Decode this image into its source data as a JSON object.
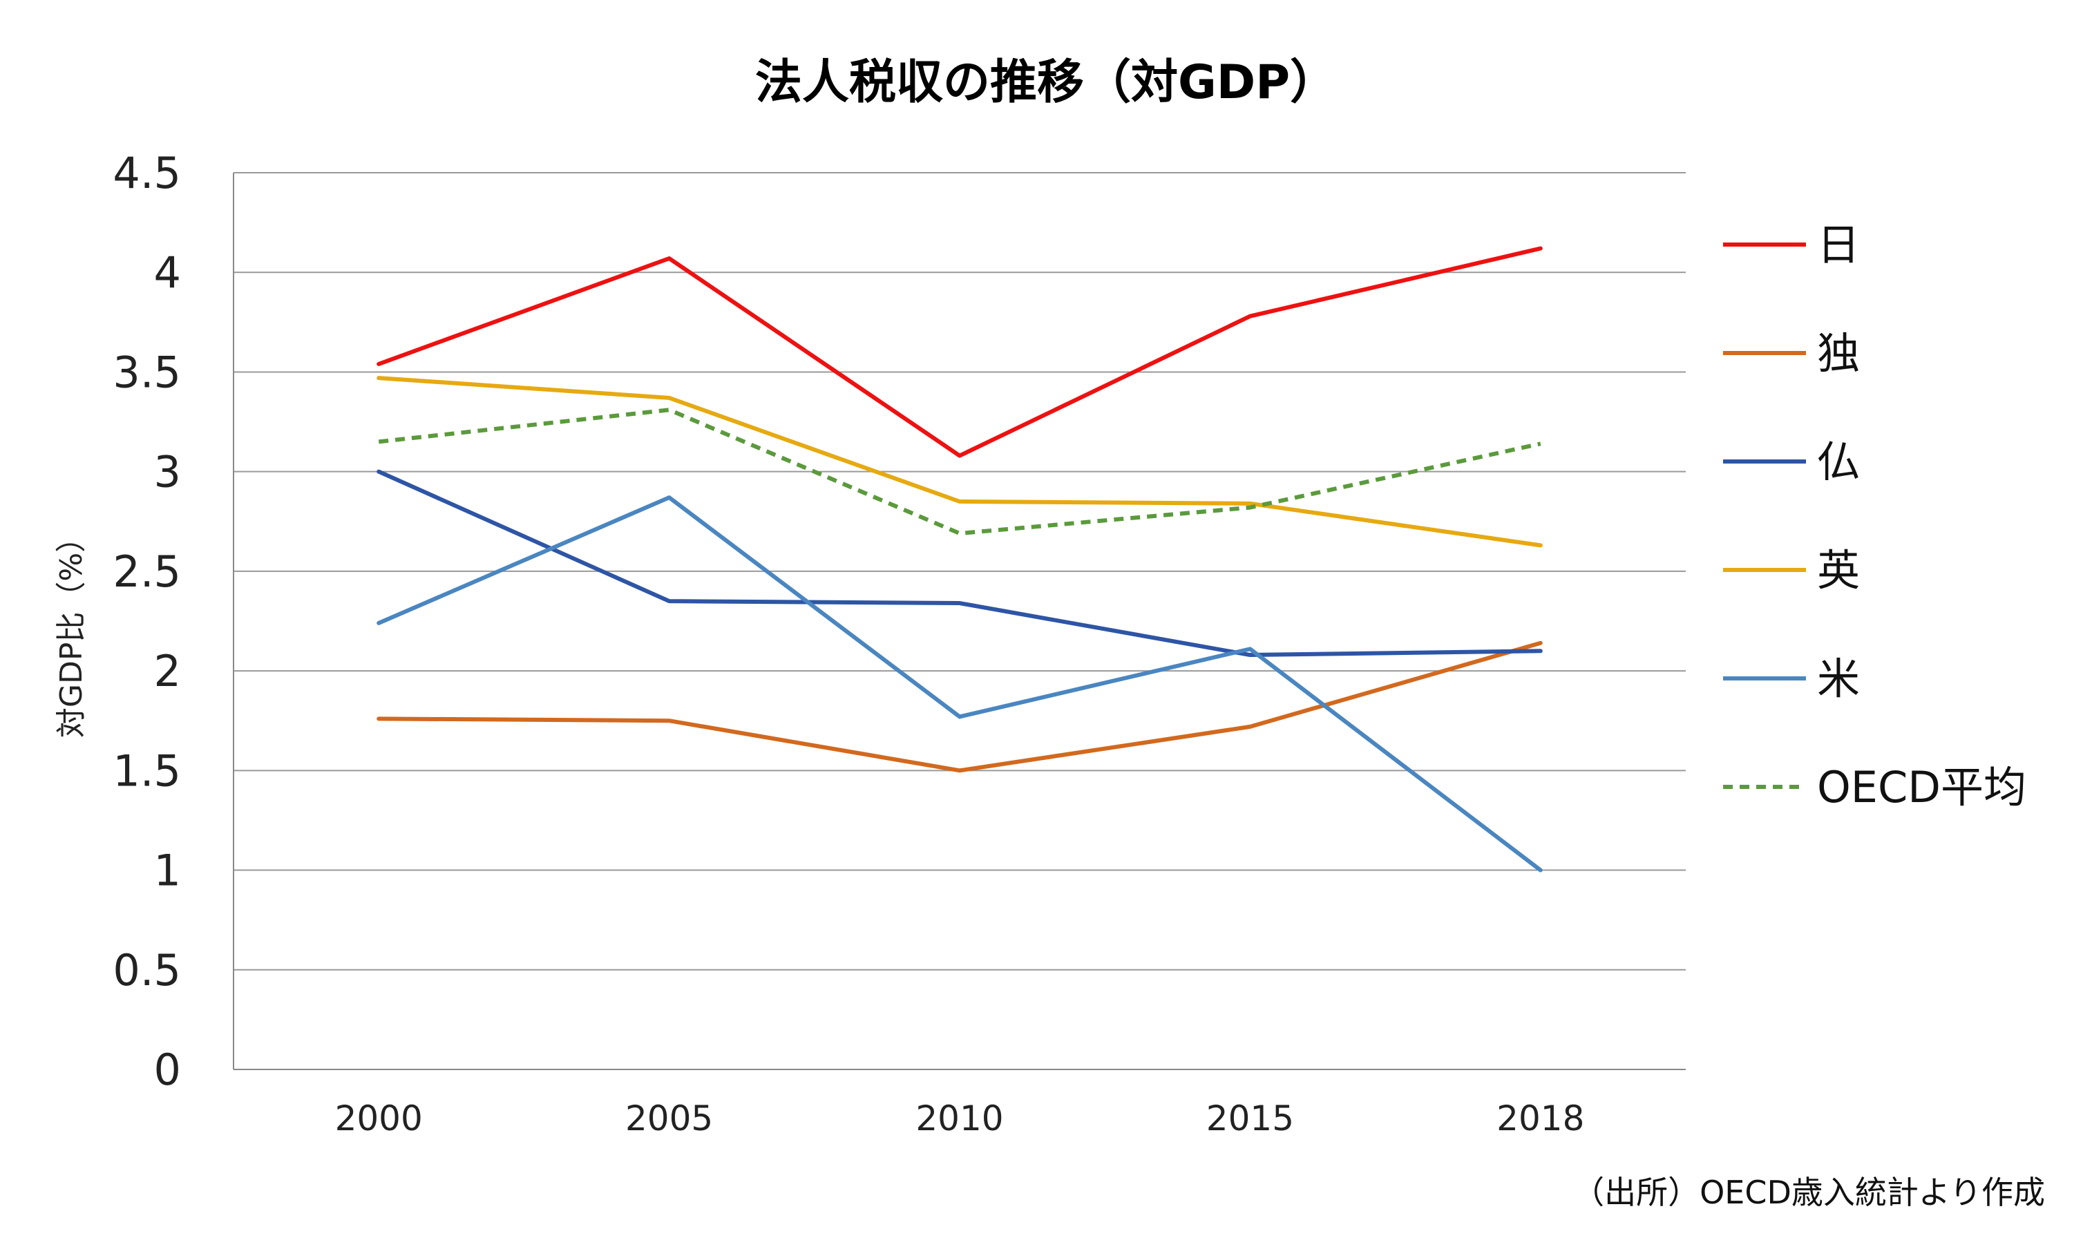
{
  "chart_data": {
    "type": "line",
    "title": "法人税収の推移（対GDP）",
    "ylabel": "対GDP比（%）",
    "xlabel": "",
    "categories": [
      "2000",
      "2005",
      "2010",
      "2015",
      "2018"
    ],
    "ylim": [
      0,
      4.5
    ],
    "yticks": [
      0,
      0.5,
      1,
      1.5,
      2,
      2.5,
      3,
      3.5,
      4,
      4.5
    ],
    "ytick_labels": [
      "0",
      "0.5",
      "1",
      "1.5",
      "2",
      "2.5",
      "3",
      "3.5",
      "4",
      "4.5"
    ],
    "grid": true,
    "legend_position": "right",
    "series": [
      {
        "name": "日",
        "color": "#EE1111",
        "dashed": false,
        "values": [
          3.54,
          4.07,
          3.08,
          3.78,
          4.12
        ]
      },
      {
        "name": "独",
        "color": "#D2691E",
        "dashed": false,
        "values": [
          1.76,
          1.75,
          1.5,
          1.72,
          2.14
        ]
      },
      {
        "name": "仏",
        "color": "#2E55A5",
        "dashed": false,
        "values": [
          3.0,
          2.35,
          2.34,
          2.08,
          2.1
        ]
      },
      {
        "name": "英",
        "color": "#E6A910",
        "dashed": false,
        "values": [
          3.47,
          3.37,
          2.85,
          2.84,
          2.63
        ]
      },
      {
        "name": "米",
        "color": "#4A86C0",
        "dashed": false,
        "values": [
          2.24,
          2.87,
          1.77,
          2.11,
          1.0
        ]
      },
      {
        "name": "OECD平均",
        "color": "#5B9A3C",
        "dashed": true,
        "values": [
          3.15,
          3.31,
          2.69,
          2.82,
          3.14
        ]
      }
    ],
    "source": "（出所）OECD歳入統計より作成"
  }
}
